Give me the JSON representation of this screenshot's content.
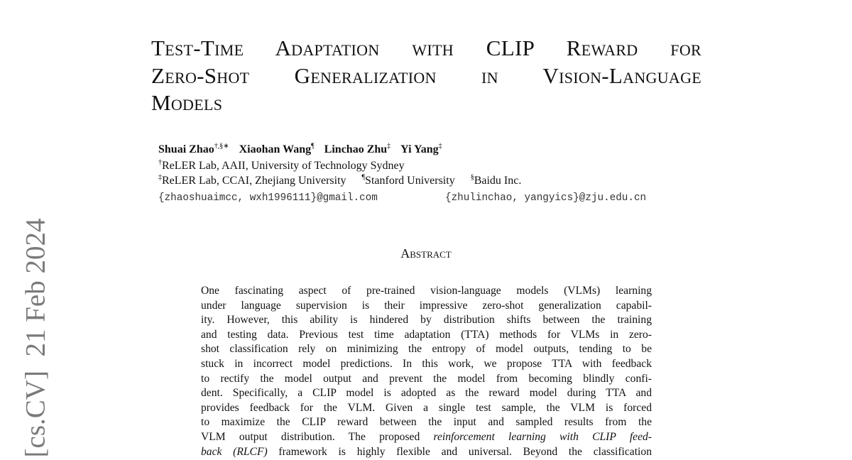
{
  "stamp": "[cs.CV]  21 Feb 2024",
  "title": {
    "lines": [
      "Test-Time Adaptation with CLIP Reward for",
      "Zero-Shot Generalization in Vision-Language",
      "Models"
    ]
  },
  "authors": [
    {
      "name": "Shuai Zhao",
      "mark": "†,§∗"
    },
    {
      "name": "Xiaohan Wang",
      "mark": "¶"
    },
    {
      "name": "Linchao Zhu",
      "mark": "‡"
    },
    {
      "name": "Yi Yang",
      "mark": "‡"
    }
  ],
  "affiliations": [
    [
      {
        "mark": "†",
        "name": "ReLER Lab, AAII, University of Technology Sydney"
      }
    ],
    [
      {
        "mark": "‡",
        "name": "ReLER Lab, CCAI, Zhejiang University"
      },
      {
        "mark": "¶",
        "name": "Stanford University"
      },
      {
        "mark": "§",
        "name": "Baidu Inc."
      }
    ]
  ],
  "emails": [
    "{zhaoshuaimcc, wxh1996111}@gmail.com",
    "{zhulinchao, yangyics}@zju.edu.cn"
  ],
  "abstract": {
    "heading": "Abstract",
    "lines": [
      [
        {
          "text": "One fascinating aspect of pre-trained vision-language models (VLMs) learning"
        }
      ],
      [
        {
          "text": "under language supervision is their impressive zero-shot generalization capabil-"
        }
      ],
      [
        {
          "text": "ity.  However, this ability is hindered by distribution shifts between the training"
        }
      ],
      [
        {
          "text": "and testing data. Previous test time adaptation (TTA) methods for VLMs in zero-"
        }
      ],
      [
        {
          "text": "shot classification rely on minimizing the entropy of model outputs, tending to be"
        }
      ],
      [
        {
          "text": "stuck in incorrect model predictions. In this work, we propose TTA with feedback"
        }
      ],
      [
        {
          "text": "to rectify the model output and prevent the model from becoming blindly confi-"
        }
      ],
      [
        {
          "text": "dent. Specifically, a CLIP model is adopted as the reward model during TTA and"
        }
      ],
      [
        {
          "text": "provides feedback for the VLM. Given a single test sample, the VLM is forced"
        }
      ],
      [
        {
          "text": "to maximize the CLIP reward between the input and sampled results from the"
        }
      ],
      [
        {
          "text": "VLM output distribution.  The proposed "
        },
        {
          "text": "reinforcement learning with CLIP feed-",
          "italic": true
        }
      ],
      [
        {
          "text": "back (RLCF)",
          "italic": true
        },
        {
          "text": " framework is highly flexible and universal. Beyond the classification"
        }
      ]
    ]
  }
}
